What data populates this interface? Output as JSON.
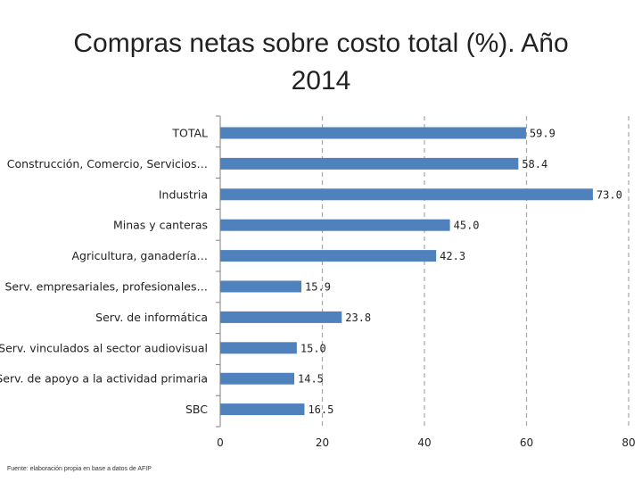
{
  "title_lines": [
    "Compras netas sobre costo total (%). Año",
    "2014"
  ],
  "footnote": "Fuente: elaboración propia en base a datos de AFIP",
  "colors": {
    "bar": "#4f81bd",
    "grid": "#a6a6a6",
    "axis": "#7f7f7f",
    "text": "#222222"
  },
  "chart_data": {
    "type": "bar",
    "orientation": "horizontal",
    "title": "Compras netas sobre costo total (%). Año 2014",
    "xlabel": "",
    "ylabel": "",
    "xlim": [
      0,
      80
    ],
    "xticks": [
      0,
      20,
      40,
      60,
      80
    ],
    "grid": true,
    "legend": "none",
    "categories": [
      "TOTAL",
      "Construcción, Comercio, Servicios…",
      "Industria",
      "Minas y canteras",
      "Agricultura, ganadería…",
      "Serv. empresariales, profesionales…",
      "Serv. de informática",
      "Serv. vinculados al sector audiovisual",
      "Serv. de apoyo a la actividad primaria",
      "SBC"
    ],
    "values": [
      59.9,
      58.4,
      73.0,
      45.0,
      42.3,
      15.9,
      23.8,
      15.0,
      14.5,
      16.5
    ],
    "value_labels": [
      "59.9",
      "58.4",
      "73.0",
      "45.0",
      "42.3",
      "15.9",
      "23.8",
      "15.0",
      "14.5",
      "16.5"
    ]
  }
}
